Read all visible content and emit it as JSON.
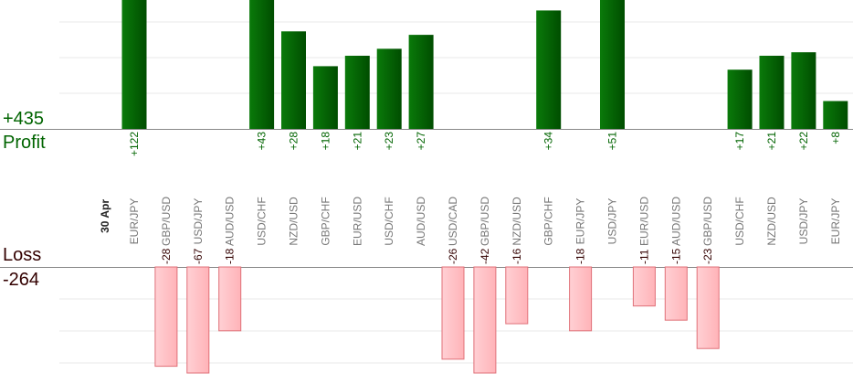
{
  "chart_data": {
    "type": "bar",
    "title": "",
    "date_label": "30 Apr",
    "profit_total": "+435",
    "profit_caption": "Profit",
    "loss_caption": "Loss",
    "loss_total": "-264",
    "categories": [
      "EUR/JPY",
      "GBP/USD",
      "USD/JPY",
      "AUD/USD",
      "USD/CHF",
      "NZD/USD",
      "GBP/CHF",
      "EUR/USD",
      "USD/CHF",
      "AUD/USD",
      "USD/CAD",
      "GBP/USD",
      "NZD/USD",
      "GBP/CHF",
      "EUR/JPY",
      "USD/JPY",
      "EUR/USD",
      "AUD/USD",
      "GBP/USD",
      "USD/CHF",
      "NZD/USD",
      "USD/JPY",
      "EUR/JPY"
    ],
    "values": [
      122,
      -28,
      -67,
      -18,
      43,
      28,
      18,
      21,
      23,
      27,
      -26,
      -42,
      -16,
      34,
      -18,
      51,
      -11,
      -15,
      -23,
      17,
      21,
      22,
      8
    ],
    "value_labels": [
      "+122",
      "-28",
      "-67",
      "-18",
      "+43",
      "+28",
      "+18",
      "+21",
      "+23",
      "+27",
      "-26",
      "-42",
      "-16",
      "+34",
      "-18",
      "+51",
      "-11",
      "-15",
      "-23",
      "+17",
      "+21",
      "+22",
      "+8"
    ],
    "profit_ylim": [
      0,
      37
    ],
    "loss_ylim": [
      0,
      33
    ],
    "colors": {
      "profit_dark": "#004d00",
      "profit_light": "#0a7a0a",
      "profit_text": "#006400",
      "loss_fill": "#ffb3b8",
      "loss_light": "#ffd0d4",
      "loss_stroke": "#e07078",
      "loss_text": "#330000",
      "axis": "#888888",
      "grid": "#e8e8e8",
      "category_text": "#777777"
    }
  }
}
